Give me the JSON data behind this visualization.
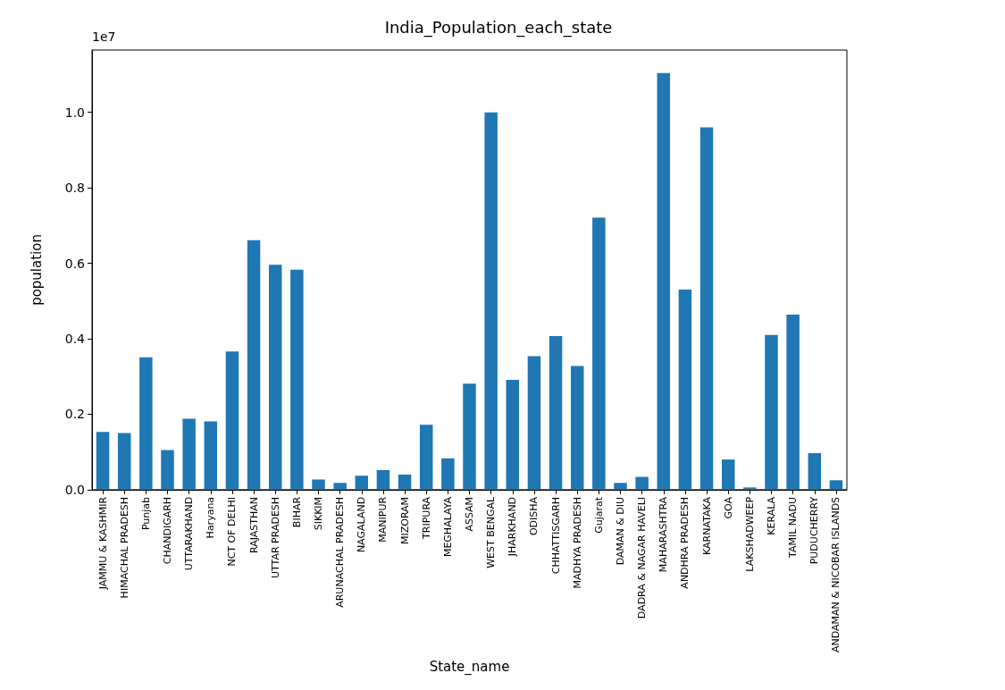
{
  "chart_data": {
    "type": "bar",
    "title": "India_Population_each_state",
    "xlabel": "State_name",
    "ylabel": "population",
    "annotations": [
      "1e7"
    ],
    "categories": [
      "JAMMU & KASHMIR",
      "HIMACHAL PRADESH",
      "Punjab",
      "CHANDIGARH",
      "UTTARAKHAND",
      "Haryana",
      "NCT OF DELHI",
      "RAJASTHAN",
      "UTTAR PRADESH",
      "BIHAR",
      "SIKKIM",
      "ARUNACHAL PRADESH",
      "NAGALAND",
      "MANIPUR",
      "MIZORAM",
      "TRIPURA",
      "MEGHALAYA",
      "ASSAM",
      "WEST BENGAL",
      "JHARKHAND",
      "ODISHA",
      "CHHATTISGARH",
      "MADHYA PRADESH",
      "Gujarat",
      "DAMAN & DIU",
      "DADRA & NAGAR HAVELI",
      "MAHARASHTRA",
      "ANDHRA PRADESH",
      "KARNATAKA",
      "GOA",
      "LAKSHADWEEP",
      "KERALA",
      "TAMIL NADU",
      "PUDUCHERRY",
      "ANDAMAN & NICOBAR ISLANDS"
    ],
    "values": [
      0.153,
      0.15,
      0.351,
      0.105,
      0.188,
      0.181,
      0.366,
      0.661,
      0.596,
      0.583,
      0.027,
      0.018,
      0.037,
      0.052,
      0.04,
      0.172,
      0.083,
      0.281,
      1.0,
      0.291,
      0.354,
      0.407,
      0.328,
      0.721,
      0.018,
      0.034,
      1.104,
      0.53,
      0.96,
      0.08,
      0.006,
      0.41,
      0.464,
      0.097,
      0.025
    ],
    "color": "#1f77b4",
    "ylim": [
      0,
      1.165
    ],
    "yticks": [
      {
        "value": 0,
        "label": "0.0"
      },
      {
        "value": 0.2,
        "label": "0.2"
      },
      {
        "value": 0.4,
        "label": "0.4"
      },
      {
        "value": 0.6,
        "label": "0.6"
      },
      {
        "value": 0.8,
        "label": "0.8"
      },
      {
        "value": 1,
        "label": "1.0"
      }
    ],
    "grid": false
  }
}
